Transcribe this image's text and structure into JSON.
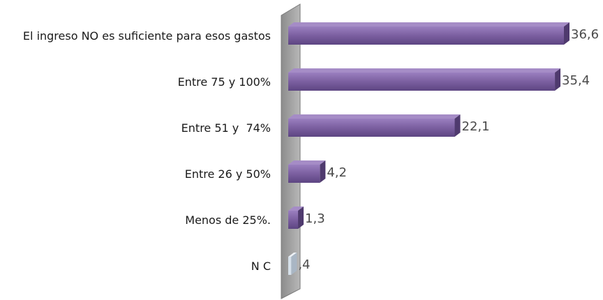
{
  "chart_data": {
    "type": "bar",
    "orientation": "horizontal",
    "categories": [
      "El ingreso NO es suficiente para esos gastos",
      "Entre 75 y 100%",
      "Entre 51 y  74%",
      "Entre 26 y 50%",
      "Menos de 25%.",
      "N C"
    ],
    "values": [
      36.6,
      35.4,
      22.1,
      4.2,
      1.3,
      0.4
    ],
    "value_labels": [
      "36,6",
      "35,4",
      "22,1",
      "4,2",
      "1,3",
      ",4"
    ],
    "xlim": [
      0,
      36.6
    ],
    "grid": false,
    "legend": "none",
    "colors": {
      "bar": "#7b5fa0",
      "bar_top": "#a58cc6",
      "bar_side": "#4f3a6e",
      "bar_nc": "#d6e0ea",
      "axis_wall": "#9a9a9a"
    }
  }
}
